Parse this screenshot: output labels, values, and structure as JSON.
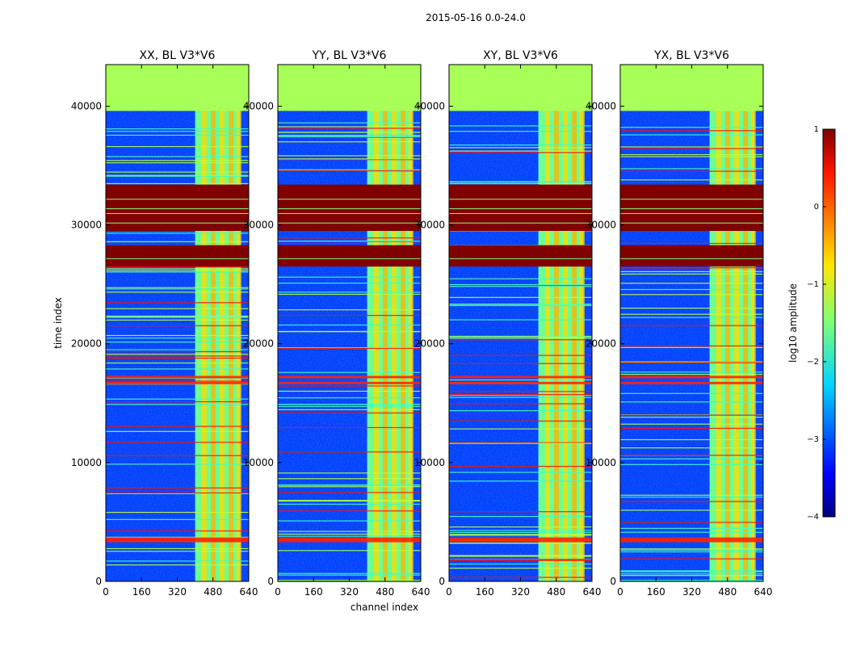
{
  "figure": {
    "suptitle": "2015-05-16 0.0-24.0",
    "xlabel": "channel index",
    "ylabel": "time index"
  },
  "chart_data": {
    "type": "heatmap",
    "x_ticks": [
      "0",
      "160",
      "320",
      "480",
      "640"
    ],
    "x_tick_values": [
      0,
      160,
      320,
      480,
      640
    ],
    "y_ticks": [
      "0",
      "10000",
      "20000",
      "30000",
      "40000"
    ],
    "y_tick_values": [
      0,
      10000,
      20000,
      30000,
      40000
    ],
    "xlim": [
      0,
      640
    ],
    "ylim": [
      0,
      43500
    ],
    "colormap": "jet",
    "colorbar": {
      "label": "log10 amplitude",
      "ticks": [
        "1",
        "0",
        "−1",
        "−2",
        "−3",
        "−4"
      ],
      "tick_values": [
        1,
        0,
        -1,
        -2,
        -3,
        -4
      ],
      "range": [
        -4,
        1
      ]
    },
    "panels": [
      {
        "title": "XX, BL V3*V6"
      },
      {
        "title": "YY, BL V3*V6"
      },
      {
        "title": "XY, BL V3*V6"
      },
      {
        "title": "YX, BL V3*V6"
      }
    ],
    "flagged_time_ranges": [
      {
        "from": 26500,
        "to": 28300,
        "log_amp": 1
      },
      {
        "from": 29500,
        "to": 33400,
        "log_amp": 1
      },
      {
        "from": 39600,
        "to": 43500,
        "log_amp": -1.3
      }
    ],
    "rfi_channel_range": [
      400,
      600
    ]
  }
}
